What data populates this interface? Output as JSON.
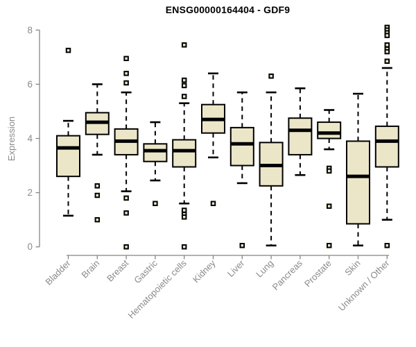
{
  "chart_data": {
    "type": "boxplot",
    "title": "ENSG00000164404 - GDF9",
    "xlabel": "",
    "ylabel": "Expression",
    "ylim": [
      0,
      8
    ],
    "yticks": [
      0,
      2,
      4,
      6,
      8
    ],
    "grid": false,
    "legend_position": "none",
    "categories": [
      "Bladder",
      "Brain",
      "Breast",
      "Gastric",
      "Hematopoietic cells",
      "Kidney",
      "Liver",
      "Lung",
      "Pancreas",
      "Prostate",
      "Skin",
      "Unknown / Other"
    ],
    "boxes": [
      {
        "category": "Bladder",
        "low": 1.15,
        "q1": 2.6,
        "median": 3.65,
        "q3": 4.1,
        "high": 4.65,
        "outliers": [
          7.25
        ]
      },
      {
        "category": "Brain",
        "low": 3.4,
        "q1": 4.15,
        "median": 4.6,
        "q3": 4.95,
        "high": 6.0,
        "outliers": [
          2.25,
          1.9,
          1.0
        ]
      },
      {
        "category": "Breast",
        "low": 2.05,
        "q1": 3.4,
        "median": 3.9,
        "q3": 4.35,
        "high": 5.7,
        "outliers": [
          6.95,
          6.4,
          6.05,
          1.8,
          1.25,
          0.0
        ]
      },
      {
        "category": "Gastric",
        "low": 2.45,
        "q1": 3.15,
        "median": 3.55,
        "q3": 3.8,
        "high": 4.6,
        "outliers": [
          1.6
        ]
      },
      {
        "category": "Hematopoietic cells",
        "low": 1.6,
        "q1": 2.95,
        "median": 3.55,
        "q3": 3.95,
        "high": 5.3,
        "outliers": [
          7.45,
          6.15,
          5.95,
          5.55,
          1.35,
          1.2,
          1.1,
          0.0
        ]
      },
      {
        "category": "Kidney",
        "low": 3.3,
        "q1": 4.2,
        "median": 4.7,
        "q3": 5.25,
        "high": 6.4,
        "outliers": [
          1.6
        ]
      },
      {
        "category": "Liver",
        "low": 2.35,
        "q1": 3.0,
        "median": 3.8,
        "q3": 4.4,
        "high": 5.7,
        "outliers": [
          0.05
        ]
      },
      {
        "category": "Lung",
        "low": 0.05,
        "q1": 2.25,
        "median": 3.0,
        "q3": 3.85,
        "high": 5.7,
        "outliers": [
          6.3
        ]
      },
      {
        "category": "Pancreas",
        "low": 2.65,
        "q1": 3.4,
        "median": 4.3,
        "q3": 4.75,
        "high": 5.85,
        "outliers": []
      },
      {
        "category": "Prostate",
        "low": 3.6,
        "q1": 4.0,
        "median": 4.2,
        "q3": 4.6,
        "high": 5.05,
        "outliers": [
          2.9,
          2.8,
          1.5,
          0.05
        ]
      },
      {
        "category": "Skin",
        "low": 0.05,
        "q1": 0.85,
        "median": 2.6,
        "q3": 3.9,
        "high": 5.65,
        "outliers": []
      },
      {
        "category": "Unknown / Other",
        "low": 1.0,
        "q1": 2.95,
        "median": 3.9,
        "q3": 4.45,
        "high": 6.6,
        "outliers": [
          8.1,
          8.0,
          7.9,
          7.8,
          7.45,
          7.3,
          7.2,
          6.85,
          0.05
        ]
      }
    ],
    "colors": {
      "box_fill": "#ECE6C9",
      "box_border": "#000000",
      "median": "#000000",
      "whisker": "#000000",
      "outlier": "#000000",
      "axis": "#858585",
      "tick_label": "#8a8a8a",
      "title": "#000000",
      "background": "#ffffff"
    }
  }
}
